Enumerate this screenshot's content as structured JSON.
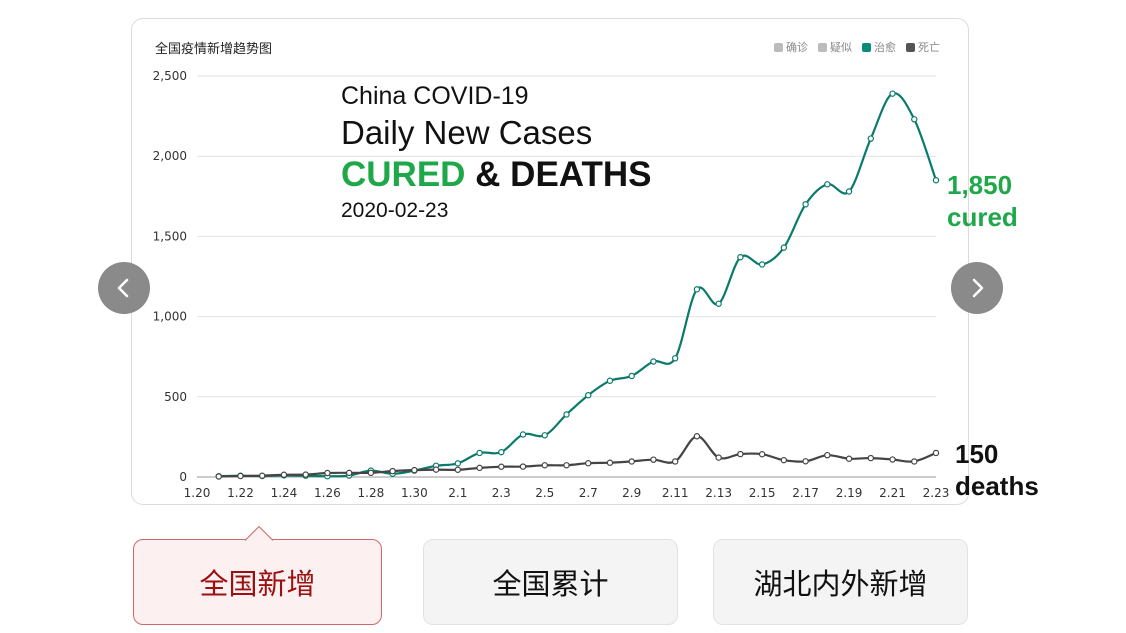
{
  "card_title": "全国疫情新增趋势图",
  "legend": [
    {
      "label": "确诊",
      "color": "#bbbbbb"
    },
    {
      "label": "疑似",
      "color": "#bbbbbb"
    },
    {
      "label": "治愈",
      "color": "#0a8a78"
    },
    {
      "label": "死亡",
      "color": "#555555"
    }
  ],
  "overlay": {
    "line1": "China COVID-19",
    "line2": "Daily New Cases",
    "line3_cured": "CURED",
    "line3_rest": " & DEATHS",
    "line4": "2020-02-23"
  },
  "notes": {
    "cured_value": "1,850",
    "cured_label": "cured",
    "deaths_value": "150",
    "deaths_label": "deaths"
  },
  "tabs": [
    {
      "label": "全国新增",
      "active": true
    },
    {
      "label": "全国累计",
      "active": false
    },
    {
      "label": "湖北内外新增",
      "active": false
    }
  ],
  "chart_data": {
    "type": "line",
    "title": "全国疫情新增趋势图",
    "x_tick_labels": [
      "1.20",
      "1.22",
      "1.24",
      "1.26",
      "1.28",
      "1.30",
      "2.1",
      "2.3",
      "2.5",
      "2.7",
      "2.9",
      "2.11",
      "2.13",
      "2.15",
      "2.17",
      "2.19",
      "2.21",
      "2.23"
    ],
    "y_tick_labels": [
      "0",
      "500",
      "1,000",
      "1,500",
      "2,000",
      "2,500"
    ],
    "ylim": [
      0,
      2500
    ],
    "grid": true,
    "legend_position": "top-right",
    "x": [
      "1.21",
      "1.22",
      "1.23",
      "1.24",
      "1.25",
      "1.26",
      "1.27",
      "1.28",
      "1.29",
      "1.30",
      "1.31",
      "2.1",
      "2.2",
      "2.3",
      "2.4",
      "2.5",
      "2.6",
      "2.7",
      "2.8",
      "2.9",
      "2.10",
      "2.11",
      "2.12",
      "2.13",
      "2.14",
      "2.15",
      "2.16",
      "2.17",
      "2.18",
      "2.19",
      "2.20",
      "2.21",
      "2.22",
      "2.23"
    ],
    "series": [
      {
        "name": "治愈",
        "color": "#0a7a6a",
        "values": [
          5,
          8,
          6,
          10,
          8,
          5,
          9,
          40,
          20,
          40,
          70,
          85,
          150,
          155,
          265,
          260,
          390,
          510,
          600,
          630,
          720,
          740,
          1170,
          1080,
          1370,
          1325,
          1430,
          1700,
          1825,
          1780,
          2110,
          2390,
          2230,
          1850
        ]
      },
      {
        "name": "死亡",
        "color": "#444444",
        "values": [
          3,
          6,
          8,
          14,
          15,
          25,
          26,
          26,
          37,
          43,
          46,
          45,
          57,
          64,
          65,
          73,
          73,
          86,
          89,
          97,
          108,
          97,
          254,
          121,
          143,
          142,
          105,
          98,
          136,
          114,
          118,
          109,
          97,
          150
        ]
      }
    ]
  }
}
